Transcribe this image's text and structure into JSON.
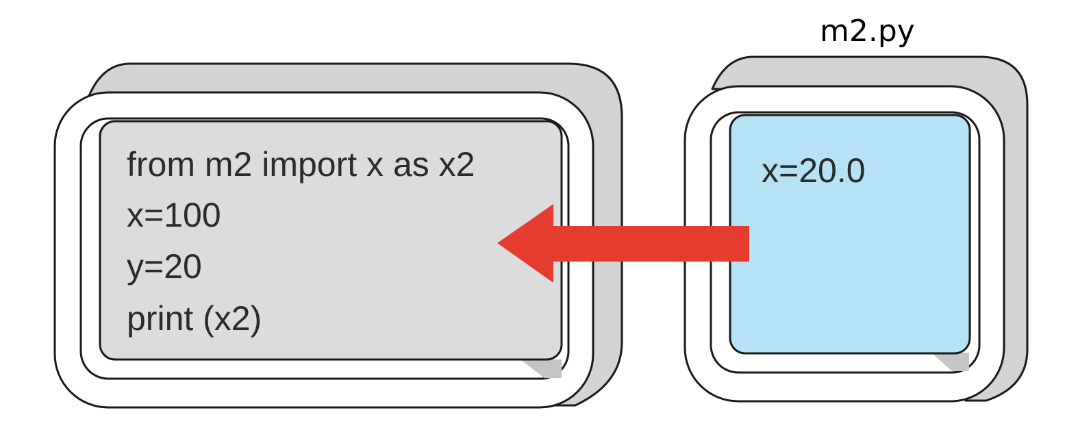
{
  "left_module": {
    "code_lines": [
      "from m2 import x as x2",
      "x=100",
      "y=20",
      "print (x2)"
    ],
    "fill_color": "#dcdcdc"
  },
  "right_module": {
    "label": "m2.py",
    "code_lines": [
      "x=20.0"
    ],
    "fill_color": "#b5e2f4"
  },
  "arrow": {
    "direction": "right-to-left",
    "color": "#e53c30"
  },
  "colors": {
    "frame_shadow": "#d2d3d5",
    "outline": "#1a1a1a",
    "frame_face": "#ffffff"
  }
}
